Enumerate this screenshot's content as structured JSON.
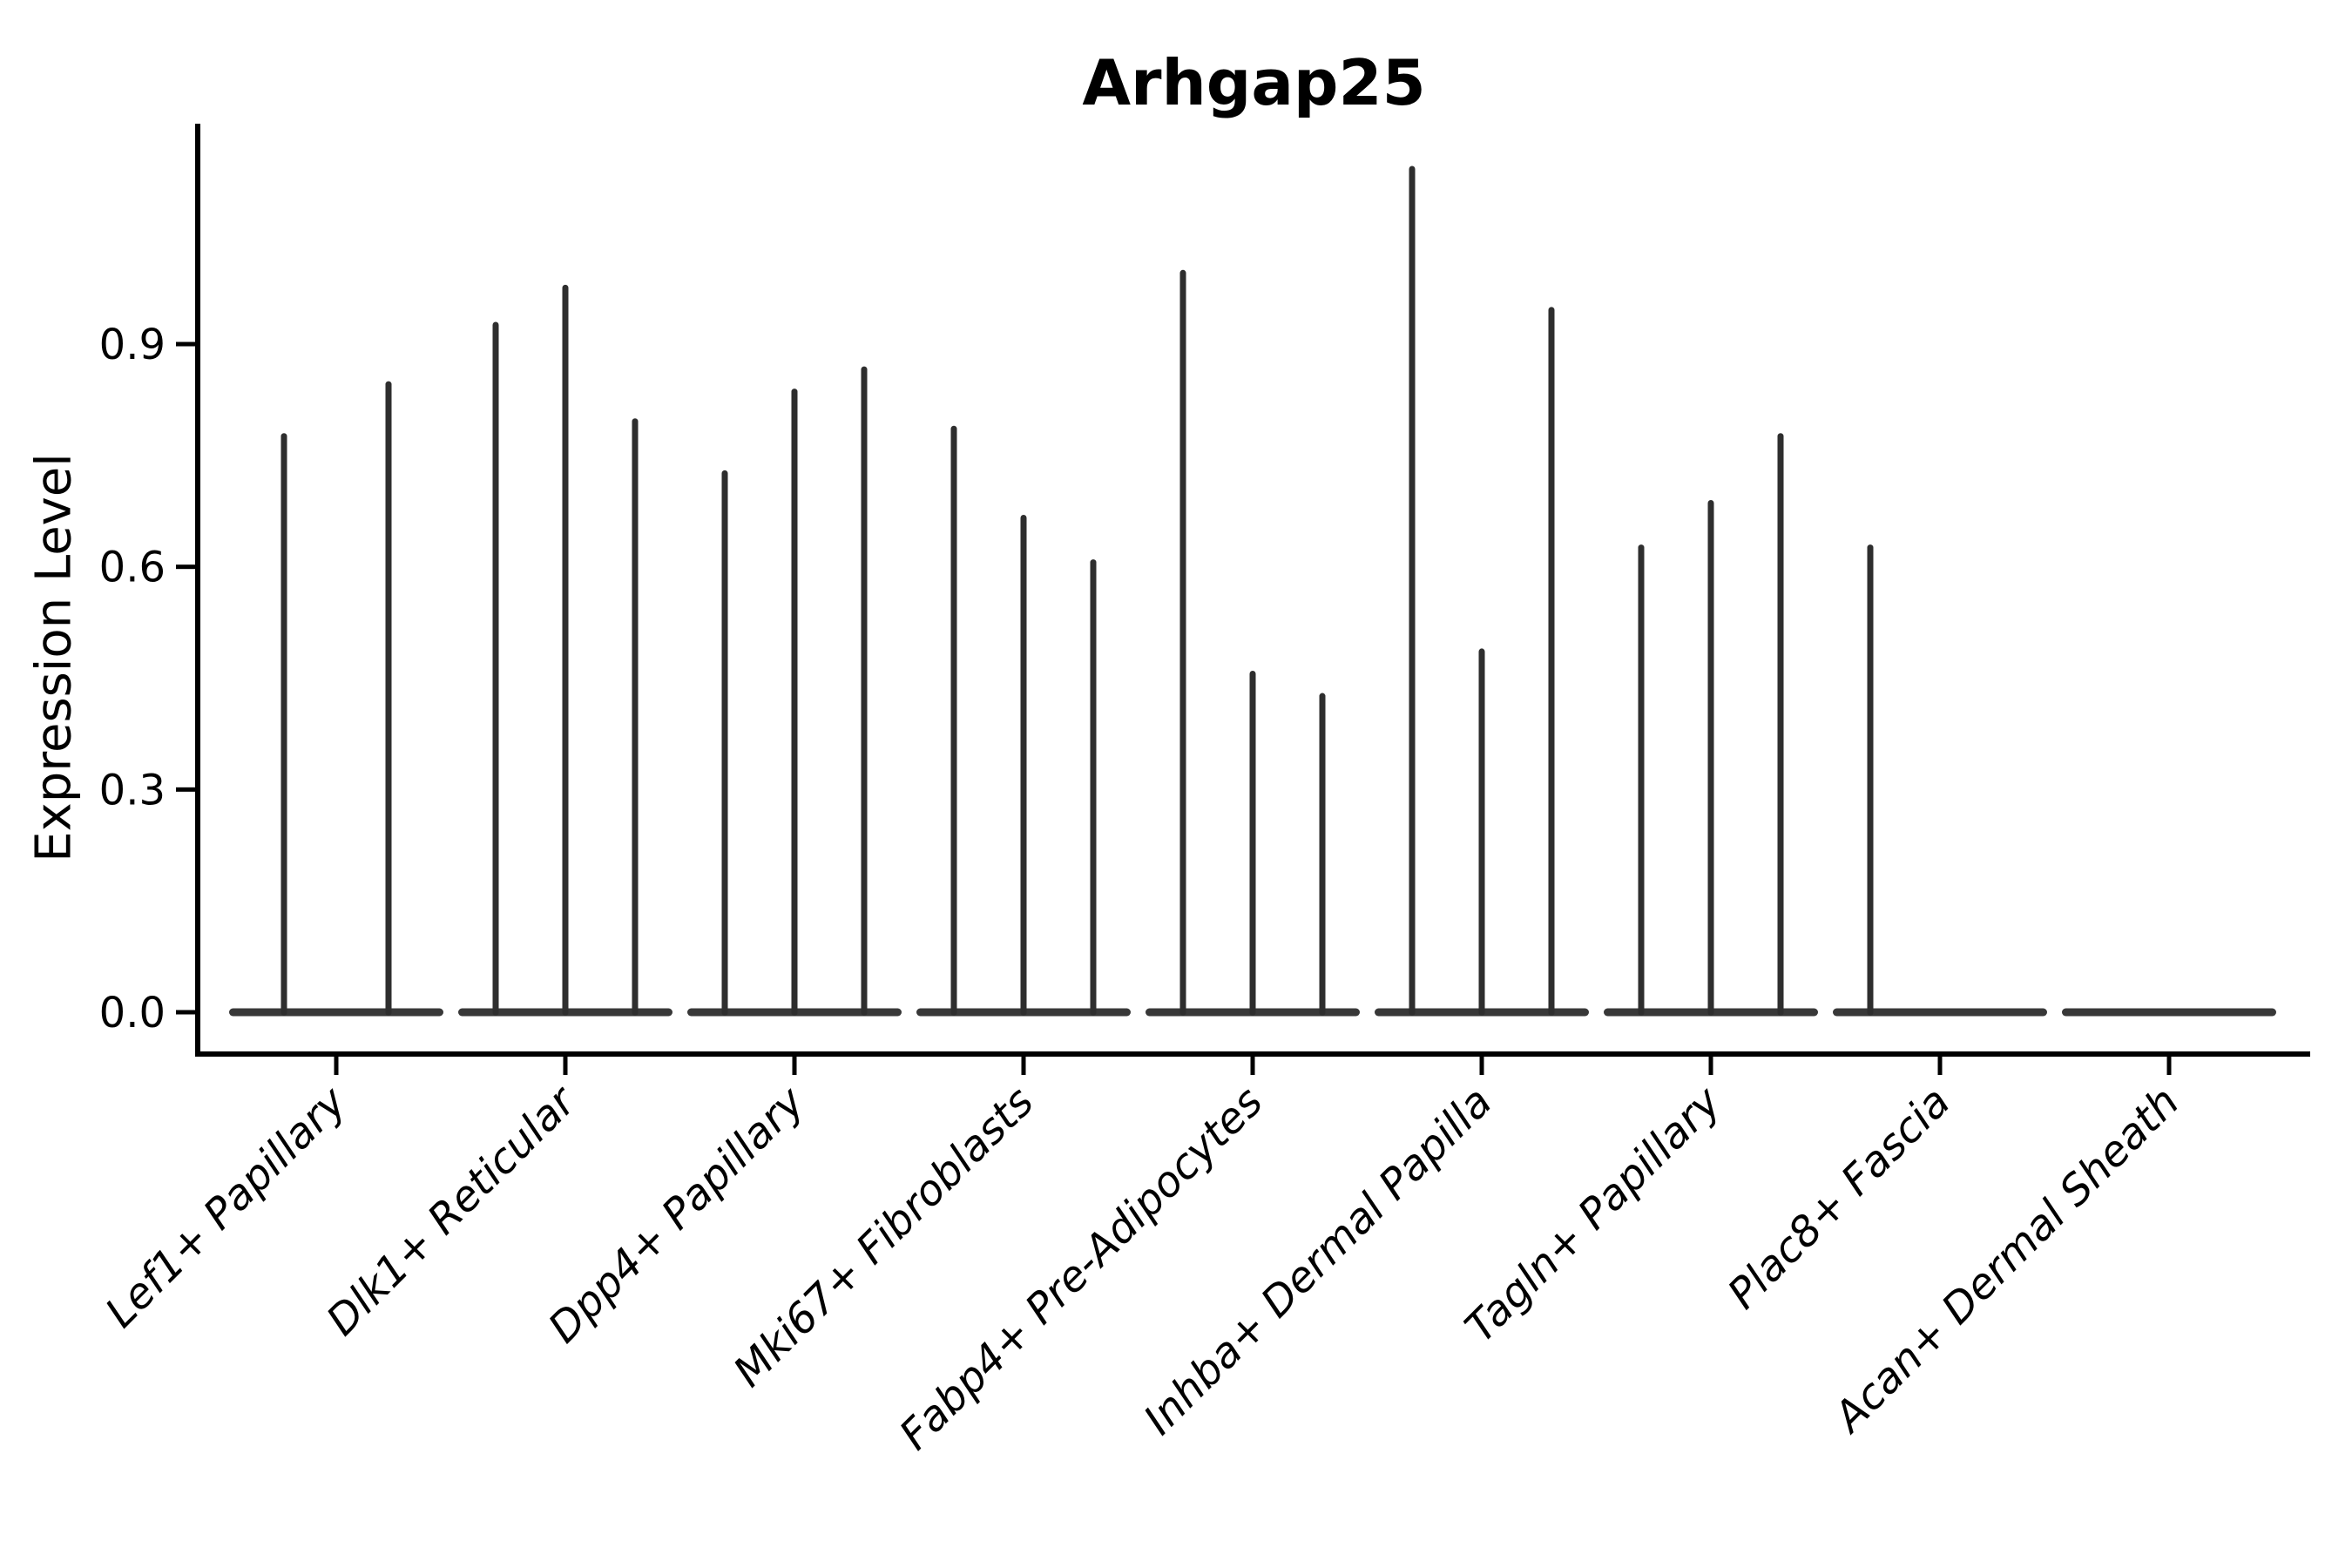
{
  "chart_data": {
    "type": "violin",
    "title": "Arhgap25",
    "ylabel": "Expression Level",
    "xlabel": "",
    "ytick_labels": [
      "0.0",
      "0.3",
      "0.6",
      "0.9"
    ],
    "ylim": [
      0.0,
      1.2
    ],
    "grid": false,
    "legend_position": "none",
    "categories": [
      "Lef1+ Papillary",
      "Dlk1+ Reticular",
      "Dpp4+ Papillary",
      "Mki67+ Fibroblasts",
      "Fabp4+ Pre-Adipocytes",
      "Inhba+ Dermal Papilla",
      "Tagln+ Papillary",
      "Plac8+ Fascia",
      "Acan+ Dermal Sheath"
    ],
    "violin_peaks": [
      [
        0.78,
        0.85
      ],
      [
        0.93,
        0.98,
        0.8
      ],
      [
        0.73,
        0.84,
        0.87
      ],
      [
        0.79,
        0.67,
        0.61
      ],
      [
        1.0,
        0.46,
        0.43
      ],
      [
        1.14,
        0.49,
        0.95
      ],
      [
        0.63,
        0.69,
        0.78
      ],
      [
        0.63,
        0.0,
        0.0
      ],
      [
        0.0,
        0.0,
        0.0
      ]
    ],
    "baseline_value": 0.0,
    "colors": {
      "violin": "#2e2e2e",
      "violin_base": "#383838",
      "axis": "#000000",
      "text": "#000000",
      "background": "#ffffff"
    }
  }
}
